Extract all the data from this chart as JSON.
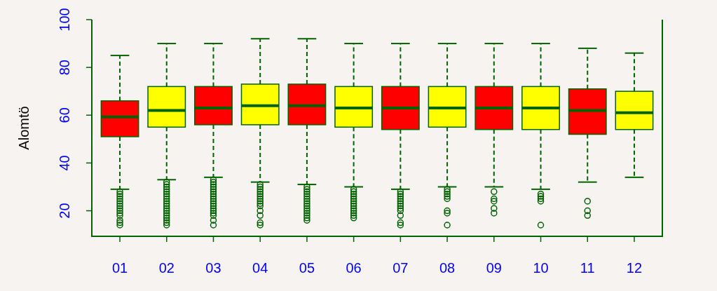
{
  "chart_data": {
    "type": "box",
    "ylabel": "Alomtö",
    "categories": [
      "01",
      "02",
      "03",
      "04",
      "05",
      "06",
      "07",
      "08",
      "09",
      "10",
      "11",
      "12"
    ],
    "colors": [
      "#ff0000",
      "#ffff00",
      "#ff0000",
      "#ffff00",
      "#ff0000",
      "#ffff00",
      "#ff0000",
      "#ffff00",
      "#ff0000",
      "#ffff00",
      "#ff0000",
      "#ffff00"
    ],
    "boxes": [
      {
        "low": 29,
        "q1": 51,
        "median": 59.3,
        "q3": 66,
        "high": 85,
        "outliers": [
          28,
          27,
          26,
          25,
          24,
          23,
          22,
          21,
          20,
          19,
          18,
          16,
          15,
          14
        ]
      },
      {
        "low": 33,
        "q1": 55,
        "median": 62,
        "q3": 72,
        "high": 90,
        "outliers": [
          32,
          31,
          30,
          29,
          28,
          27,
          26,
          25,
          24,
          23,
          22,
          21,
          20,
          19,
          18,
          17,
          16,
          15,
          14
        ]
      },
      {
        "low": 34,
        "q1": 56,
        "median": 63,
        "q3": 72,
        "high": 90,
        "outliers": [
          33,
          32,
          31,
          30,
          29,
          28,
          27,
          26,
          25,
          24,
          23,
          22,
          21,
          20,
          19,
          18,
          16,
          14
        ]
      },
      {
        "low": 32,
        "q1": 56,
        "median": 64,
        "q3": 73,
        "high": 92,
        "outliers": [
          31,
          30,
          29,
          28,
          27,
          26,
          25,
          24,
          23,
          22,
          20,
          18,
          15,
          14
        ]
      },
      {
        "low": 31,
        "q1": 56,
        "median": 64,
        "q3": 73,
        "high": 92,
        "outliers": [
          30,
          29,
          28,
          27,
          26,
          25,
          24,
          23,
          22,
          21,
          20,
          19,
          18,
          17,
          16
        ]
      },
      {
        "low": 30,
        "q1": 55,
        "median": 63,
        "q3": 72,
        "high": 90,
        "outliers": [
          29,
          28,
          27,
          26,
          25,
          24,
          23,
          22,
          21,
          20,
          19,
          18,
          17
        ]
      },
      {
        "low": 29,
        "q1": 54,
        "median": 63,
        "q3": 72,
        "high": 90,
        "outliers": [
          28,
          27,
          26,
          25,
          24,
          23,
          22,
          21,
          20,
          18,
          15,
          14
        ]
      },
      {
        "low": 30,
        "q1": 55,
        "median": 63,
        "q3": 72,
        "high": 90,
        "outliers": [
          29,
          28,
          27,
          26,
          25,
          20,
          19,
          14
        ]
      },
      {
        "low": 30,
        "q1": 54,
        "median": 63,
        "q3": 72,
        "high": 90,
        "outliers": [
          28,
          25,
          24,
          21,
          19
        ]
      },
      {
        "low": 29,
        "q1": 54,
        "median": 63,
        "q3": 72,
        "high": 90,
        "outliers": [
          27,
          26,
          25,
          24,
          14
        ]
      },
      {
        "low": 32,
        "q1": 52,
        "median": 62,
        "q3": 71,
        "high": 88,
        "outliers": [
          24,
          20,
          18
        ]
      },
      {
        "low": 34,
        "q1": 54,
        "median": 61,
        "q3": 70,
        "high": 86
      }
    ],
    "ylim": [
      9.3,
      100
    ],
    "yticks": [
      20,
      40,
      60,
      80,
      100
    ]
  }
}
